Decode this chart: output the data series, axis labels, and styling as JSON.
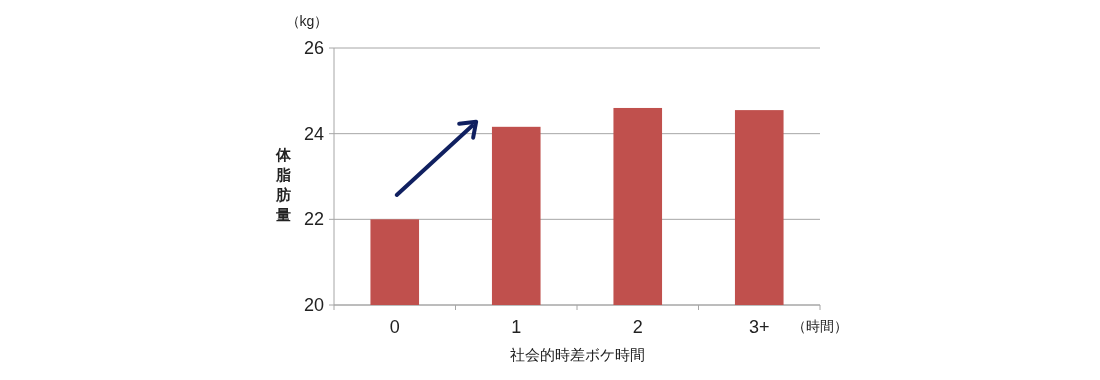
{
  "chart_data": {
    "type": "bar",
    "xlabel": "社会的時差ボケ時間",
    "ylabel": "体脂肪量",
    "categories": [
      "0",
      "1",
      "2",
      "3+"
    ],
    "values": [
      22.0,
      24.16,
      24.6,
      24.55
    ],
    "color": "#c0504d",
    "ylim": [
      20,
      26
    ],
    "yticks": [
      20,
      22,
      24,
      26
    ],
    "grid": "y",
    "annotations": [
      "（kg）",
      "（時間）"
    ]
  }
}
